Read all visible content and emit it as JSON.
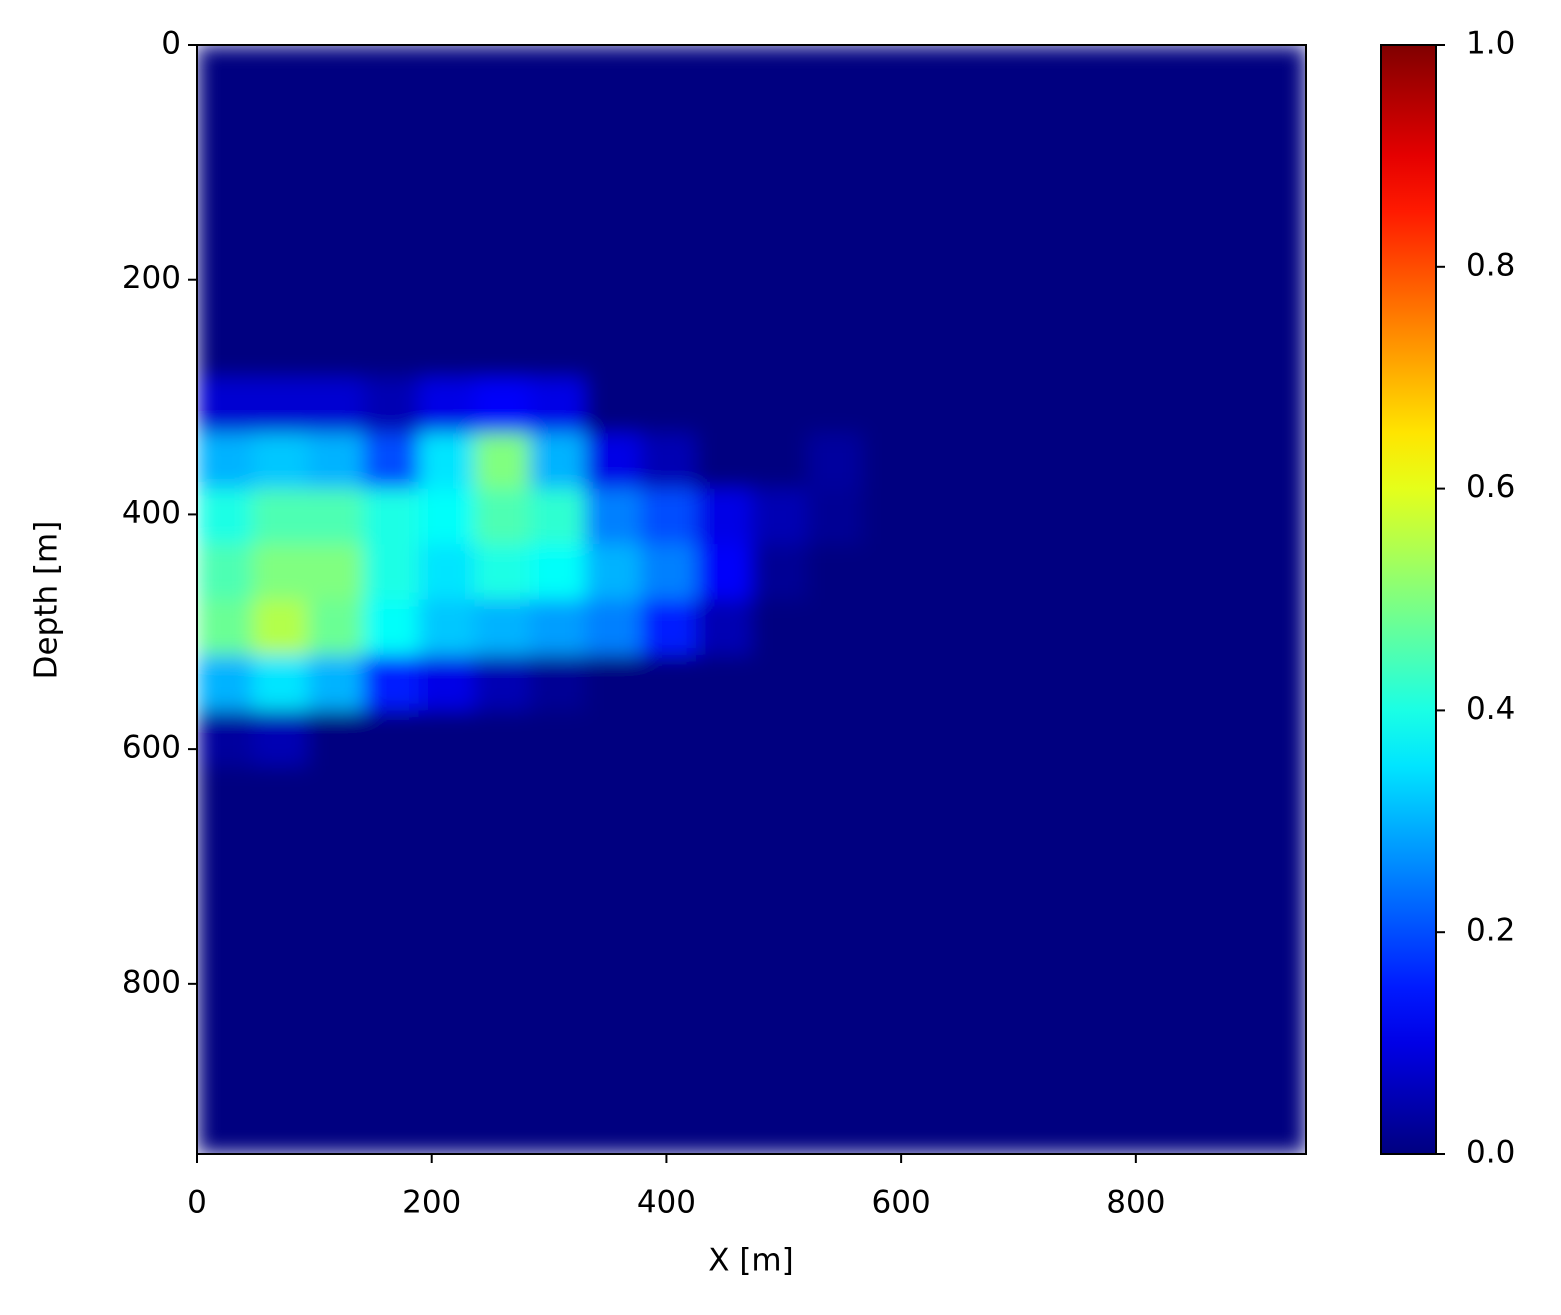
{
  "chart_data": {
    "type": "heatmap",
    "xlabel": "X [m]",
    "ylabel": "Depth [m]",
    "xlim": [
      0,
      945
    ],
    "ylim": [
      945,
      0
    ],
    "xticks": [
      0,
      200,
      400,
      600,
      800
    ],
    "yticks": [
      0,
      200,
      400,
      600,
      800
    ],
    "colormap": "jet",
    "clim": [
      0,
      1
    ],
    "cticks": [
      {
        "value": 0,
        "label": "0.0"
      },
      0.2,
      0.4,
      0.6,
      0.8,
      {
        "value": 1,
        "label": "1.0"
      }
    ],
    "z": [
      [
        0,
        0,
        0,
        0,
        0,
        0,
        0,
        0,
        0,
        0,
        0,
        0,
        0,
        0,
        0,
        0,
        0,
        0,
        0,
        0
      ],
      [
        0,
        0,
        0,
        0,
        0,
        0,
        0,
        0,
        0,
        0,
        0,
        0,
        0,
        0,
        0,
        0,
        0,
        0,
        0,
        0
      ],
      [
        0,
        0,
        0,
        0,
        0,
        0,
        0,
        0,
        0,
        0,
        0,
        0,
        0,
        0,
        0,
        0,
        0,
        0,
        0,
        0
      ],
      [
        0,
        0,
        0,
        0,
        0,
        0,
        0,
        0,
        0,
        0,
        0,
        0,
        0,
        0,
        0,
        0,
        0,
        0,
        0,
        0
      ],
      [
        0,
        0,
        0,
        0,
        0,
        0,
        0,
        0,
        0,
        0,
        0,
        0,
        0,
        0,
        0,
        0,
        0,
        0,
        0,
        0
      ],
      [
        0,
        0,
        0,
        0,
        0,
        0,
        0,
        0,
        0,
        0,
        0,
        0,
        0,
        0,
        0,
        0,
        0,
        0,
        0,
        0
      ],
      [
        0.08,
        0.08,
        0.08,
        0.05,
        0.1,
        0.12,
        0.1,
        0,
        0,
        0,
        0,
        0,
        0,
        0,
        0,
        0,
        0,
        0,
        0,
        0
      ],
      [
        0.3,
        0.32,
        0.3,
        0.2,
        0.35,
        0.5,
        0.3,
        0.1,
        0.05,
        0,
        0,
        0.03,
        0,
        0,
        0,
        0,
        0,
        0,
        0,
        0
      ],
      [
        0.4,
        0.45,
        0.45,
        0.4,
        0.38,
        0.45,
        0.42,
        0.25,
        0.2,
        0.1,
        0.05,
        0.02,
        0,
        0,
        0,
        0,
        0,
        0,
        0,
        0
      ],
      [
        0.45,
        0.5,
        0.5,
        0.4,
        0.35,
        0.4,
        0.38,
        0.3,
        0.25,
        0.12,
        0.02,
        0,
        0,
        0,
        0,
        0,
        0,
        0,
        0,
        0
      ],
      [
        0.48,
        0.55,
        0.48,
        0.38,
        0.32,
        0.3,
        0.28,
        0.25,
        0.15,
        0.05,
        0,
        0,
        0,
        0,
        0,
        0,
        0,
        0,
        0,
        0
      ],
      [
        0.3,
        0.35,
        0.3,
        0.15,
        0.1,
        0.05,
        0.02,
        0,
        0,
        0,
        0,
        0,
        0,
        0,
        0,
        0,
        0,
        0,
        0,
        0
      ],
      [
        0.03,
        0.05,
        0,
        0,
        0,
        0,
        0,
        0,
        0,
        0,
        0,
        0,
        0,
        0,
        0,
        0,
        0,
        0,
        0,
        0
      ],
      [
        0,
        0,
        0,
        0,
        0,
        0,
        0,
        0,
        0,
        0,
        0,
        0,
        0,
        0,
        0,
        0,
        0,
        0,
        0,
        0
      ],
      [
        0,
        0,
        0,
        0,
        0,
        0,
        0,
        0,
        0,
        0,
        0,
        0,
        0,
        0,
        0,
        0,
        0,
        0,
        0,
        0
      ],
      [
        0,
        0,
        0,
        0,
        0,
        0,
        0,
        0,
        0,
        0,
        0,
        0,
        0,
        0,
        0,
        0,
        0,
        0,
        0,
        0
      ],
      [
        0,
        0,
        0,
        0,
        0,
        0,
        0,
        0,
        0,
        0,
        0,
        0,
        0,
        0,
        0,
        0,
        0,
        0,
        0,
        0
      ],
      [
        0,
        0,
        0,
        0,
        0,
        0,
        0,
        0,
        0,
        0,
        0,
        0,
        0,
        0,
        0,
        0,
        0,
        0,
        0,
        0
      ],
      [
        0,
        0,
        0,
        0,
        0,
        0,
        0,
        0,
        0,
        0,
        0,
        0,
        0,
        0,
        0,
        0,
        0,
        0,
        0,
        0
      ],
      [
        0,
        0,
        0,
        0,
        0,
        0,
        0,
        0,
        0,
        0,
        0,
        0,
        0,
        0,
        0,
        0,
        0,
        0,
        0,
        0
      ]
    ]
  }
}
